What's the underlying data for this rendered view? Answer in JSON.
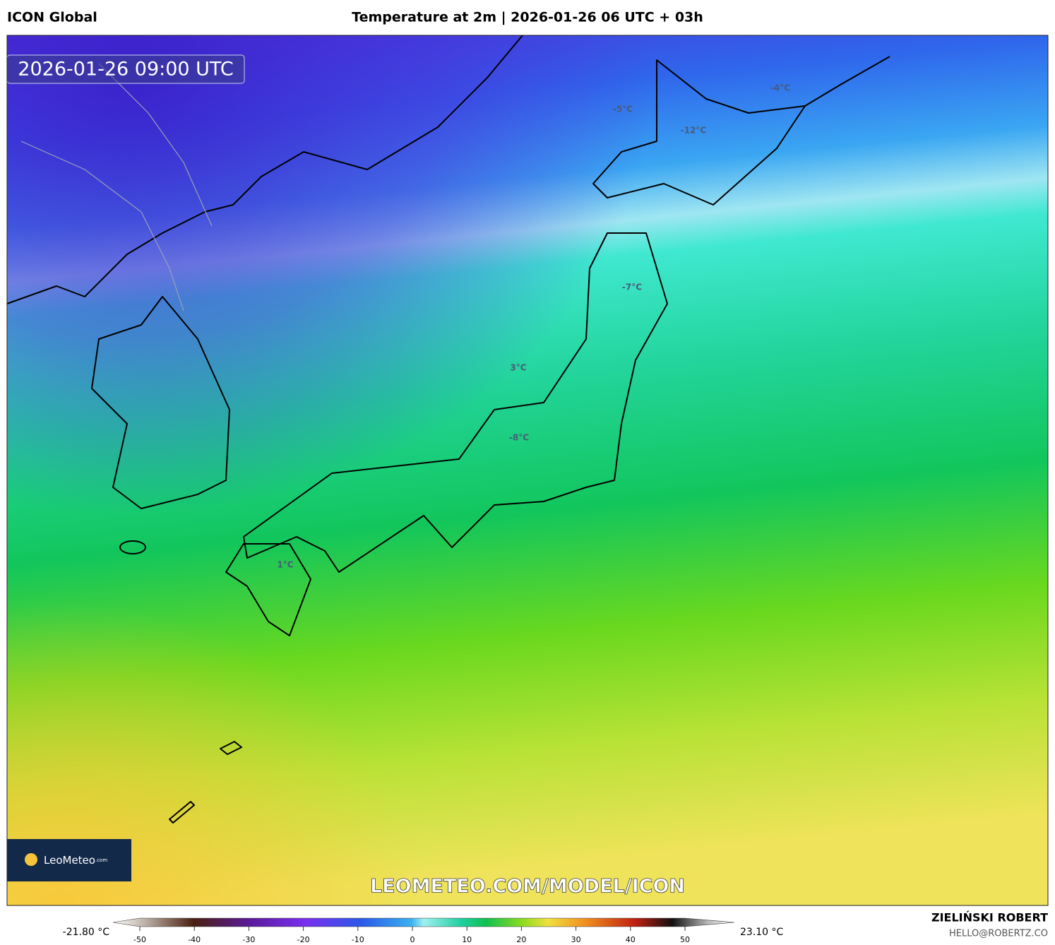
{
  "header": {
    "model": "ICON Global",
    "title": "Temperature at 2m | 2026-01-26 06 UTC + 03h"
  },
  "map": {
    "valid_time": "2026-01-26 09:00 UTC",
    "labels": [
      "-4°C",
      "-5°C",
      "-12°C",
      "-7°C",
      "3°C",
      "-8°C",
      "1°C"
    ],
    "watermark": "LEOMETEO.COM/MODEL/ICON",
    "logo": "LeoMeteo",
    "logo_suffix": ".com"
  },
  "colorbar": {
    "min_label": "-21.80 °C",
    "max_label": "23.10 °C",
    "ticks": [
      -50,
      -40,
      -30,
      -20,
      -10,
      0,
      10,
      20,
      30,
      40,
      50
    ]
  },
  "footer": {
    "author": "ZIELIŃSKI ROBERT",
    "email": "HELLO@ROBERTZ.CO"
  }
}
